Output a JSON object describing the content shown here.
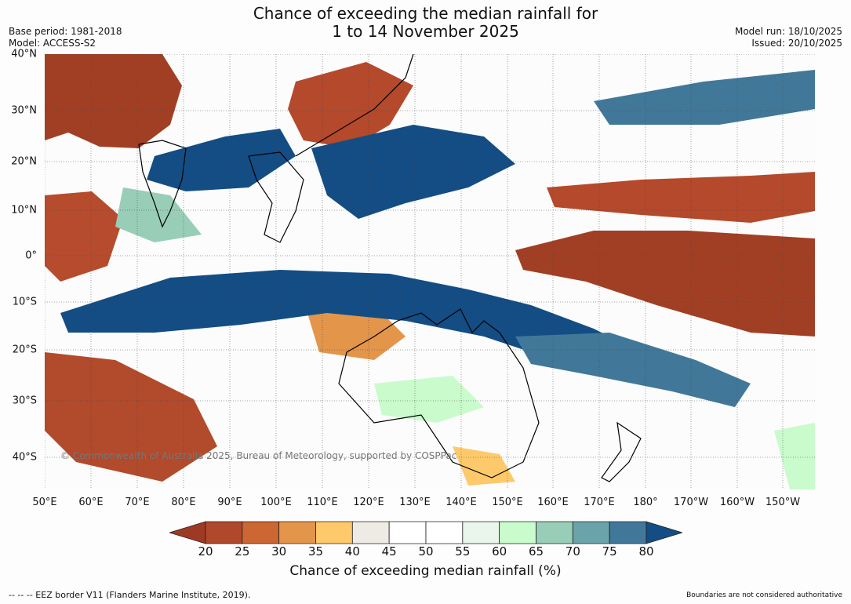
{
  "title": {
    "line1": "Chance of exceeding the median rainfall for",
    "line2": "1 to 14 November 2025"
  },
  "meta": {
    "base_period": "Base period: 1981-2018",
    "model": "Model: ACCESS-S2",
    "model_run": "Model run: 18/10/2025",
    "issued": "Issued: 20/10/2025"
  },
  "map": {
    "copyright": "© Commonwealth of Australia 2025, Bureau of Meteorology, supported by COSPPac",
    "lat_labels": [
      "40°N",
      "30°N",
      "20°N",
      "10°N",
      "0°",
      "10°S",
      "20°S",
      "30°S",
      "40°S"
    ],
    "lon_labels": [
      "50°E",
      "60°E",
      "70°E",
      "80°E",
      "90°E",
      "100°E",
      "110°E",
      "120°E",
      "130°E",
      "140°E",
      "150°E",
      "160°E",
      "170°E",
      "180°",
      "170°W",
      "160°W",
      "150°W"
    ]
  },
  "legend": {
    "ticks": [
      "20",
      "25",
      "30",
      "35",
      "40",
      "45",
      "50",
      "55",
      "60",
      "65",
      "70",
      "75",
      "80"
    ],
    "colors": [
      "#9e3a23",
      "#b0482b",
      "#cc6633",
      "#e3954a",
      "#fec96a",
      "#eeebe5",
      "#ffffff",
      "#ffffff",
      "#eaf5ec",
      "#c9fbcd",
      "#98cdb8",
      "#6aa4aa",
      "#417899",
      "#134d84"
    ],
    "label": "Chance of exceeding median rainfall (%)"
  },
  "footer": {
    "eez": "--  --  -- EEZ border V11 (Flanders Marine Institute, 2019).",
    "disclaimer": "Boundaries are not considered authoritative"
  }
}
